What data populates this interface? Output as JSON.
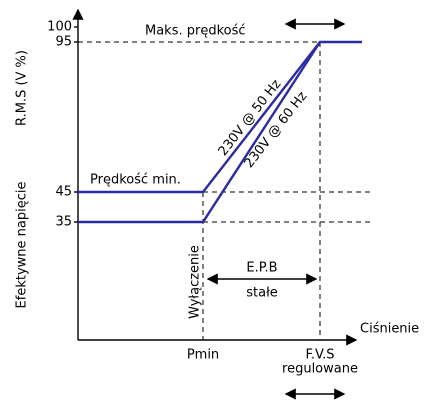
{
  "axis": {
    "y_label_main": "Efektywne napięcie",
    "y_label_unit": "R.M.S (V %)",
    "x_label": "Ciśnienie",
    "yticks": [
      100,
      95,
      45,
      35
    ]
  },
  "labels": {
    "max_speed": "Maks. prędkość",
    "min_speed": "Prędkość min.",
    "curve_50": "230V @ 50 Hz",
    "curve_60": "230V @ 60 Hz",
    "cutoff": "Wyłączenie",
    "epb": "E.P.B",
    "epb_sub": "stałe",
    "pmin": "Pmin",
    "fvs": "F.V.S",
    "fvs_sub": "regulowane"
  }
}
